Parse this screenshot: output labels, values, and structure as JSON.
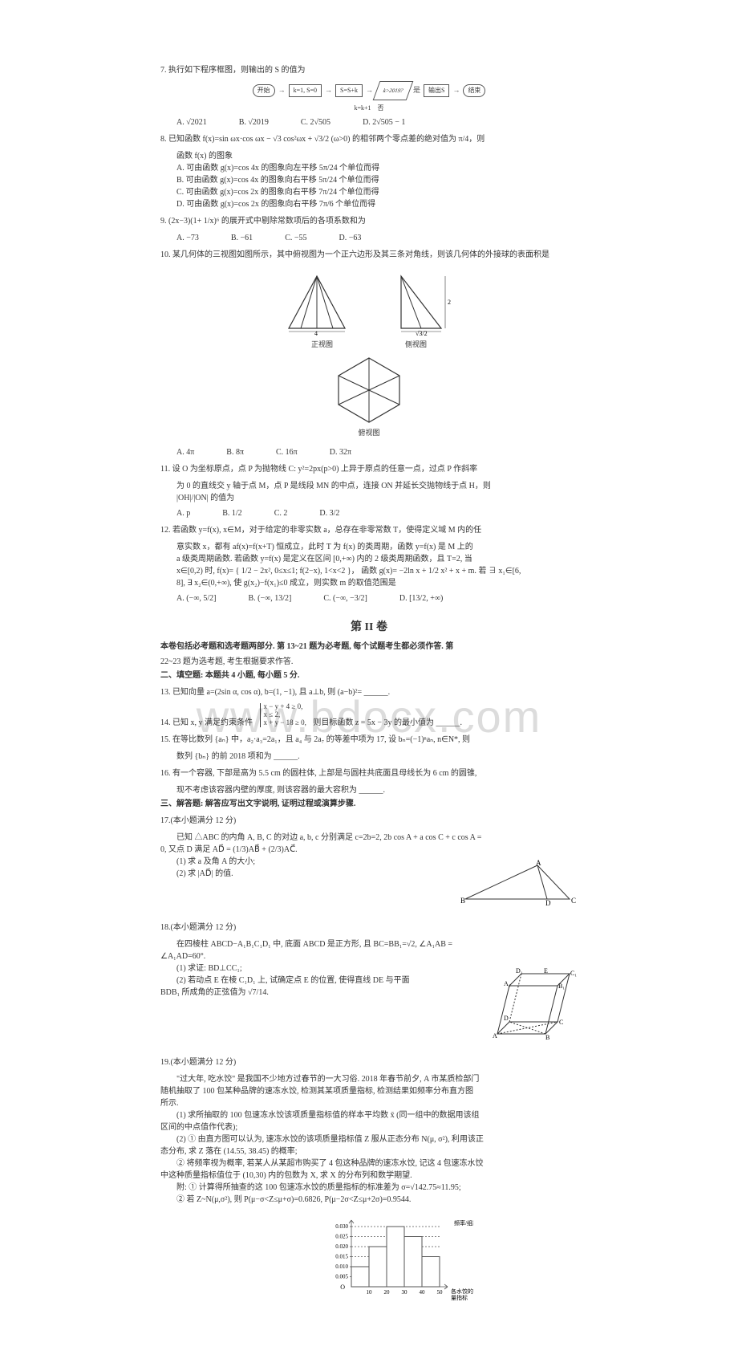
{
  "watermark": "www.bdocx.com",
  "q7": {
    "stem": "7. 执行如下程序框图，则输出的 S 的值为",
    "flow": {
      "start": "开始",
      "init": "k=1\\nS=0",
      "body1": "S=S",
      "body2": "S=S+k",
      "inc": "k=k+1",
      "cond": "k>2019?",
      "out": "输出S",
      "end": "结束",
      "yes": "是",
      "no": "否"
    },
    "A": "A. √2021",
    "B": "B. √2019",
    "C": "C. 2√505",
    "D": "D. 2√505 − 1"
  },
  "q8": {
    "stem1": "8. 已知函数 f(x)=sin ωx·cos ωx − √3 cos²ωx + √3/2 (ω>0) 的相邻两个零点差的绝对值为 π/4，则",
    "stem2": "函数 f(x) 的图象",
    "A": "A. 可由函数 g(x)=cos 4x 的图象向左平移 5π/24 个单位而得",
    "B": "B. 可由函数 g(x)=cos 4x 的图象向右平移 5π/24 个单位而得",
    "C": "C. 可由函数 g(x)=cos 2x 的图象向右平移 7π/24 个单位而得",
    "D": "D. 可由函数 g(x)=cos 2x 的图象向右平移 7π/6 个单位而得"
  },
  "q9": {
    "stem": "9. (2x−3)(1+ 1/x)⁶ 的展开式中剔除常数项后的各项系数和为",
    "A": "A. −73",
    "B": "B. −61",
    "C": "C. −55",
    "D": "D. −63"
  },
  "q10": {
    "stem": "10. 某几何体的三视图如图所示，其中俯视图为一个正六边形及其三条对角线，则该几何体的外接球的表面积是",
    "front": "正视图",
    "side": "侧视图",
    "top": "俯视图",
    "w": "4",
    "h": "2",
    "half": "√3/2",
    "A": "A. 4π",
    "B": "B. 8π",
    "C": "C. 16π",
    "D": "D. 32π"
  },
  "q11": {
    "stem1": "11. 设 O 为坐标原点，点 P 为抛物线 C: y²=2px(p>0) 上异于原点的任意一点，过点 P 作斜率",
    "stem2": "为 0 的直线交 y 轴于点 M，点 P 是线段 MN 的中点，连接 ON 并延长交抛物线于点 H，则",
    "stem3": "|OH|/|ON| 的值为",
    "A": "A. p",
    "B": "B. 1/2",
    "C": "C. 2",
    "D": "D. 3/2"
  },
  "q12": {
    "stem1": "12. 若函数 y=f(x), x∈M，对于给定的非零实数 a，总存在非零常数 T，使得定义域 M 内的任",
    "stem2": "意实数 x，都有 af(x)=f(x+T) 恒成立，此时 T 为 f(x) 的类周期，函数 y=f(x) 是 M 上的",
    "stem3": "a 级类周期函数. 若函数 y=f(x) 是定义在区间 [0,+∞) 内的 2 级类周期函数，且 T=2, 当",
    "stem4": "x∈[0,2) 时, f(x)= { 1/2 − 2x², 0≤x≤1;  f(2−x), 1<x<2 }，  函数 g(x)= −2ln x + 1/2 x² + x + m. 若 ∃ x₁∈[6,",
    "stem5": "8], ∃ x₂∈(0,+∞), 使 g(x₂)−f(x₁)≤0 成立，则实数 m 的取值范围是",
    "A": "A. (−∞, 5/2]",
    "B": "B. (−∞, 13/2]",
    "C": "C. (−∞, −3/2]",
    "D": "D. [13/2, +∞)"
  },
  "sec2": {
    "title": "第 II 卷",
    "intro1": "本卷包括必考题和选考题两部分. 第 13~21 题为必考题, 每个试题考生都必须作答. 第",
    "intro2": "22~23 题为选考题, 考生根据要求作答.",
    "fill": "二、填空题: 本题共 4 小题, 每小题 5 分."
  },
  "q13": "13. 已知向量 a=(2sin α, cos α), b=(1, −1), 且 a⊥b, 则 (a−b)²= ______.",
  "q14": {
    "stem": "14. 已知 x, y 满足约束条件",
    "sys1": "x − y + 4 ≥ 0,",
    "sys2": "x ≤ 2,",
    "sys3": "x + y − 18 ≥ 0,",
    "tail": "则目标函数 z = 5x − 3y 的最小值为 ______."
  },
  "q15": {
    "stem1": "15. 在等比数列 {aₙ} 中，a₂·a₃=2a₁，且 a₄ 与 2a₇ 的等差中项为 17, 设 bₙ=(−1)ⁿaₙ, n∈N*, 则",
    "stem2": "数列 {bₙ} 的前 2018 项和为 ______."
  },
  "q16": {
    "stem1": "16. 有一个容器, 下部是高为 5.5 cm 的圆柱体, 上部是与圆柱共底面且母线长为 6 cm 的圆锥,",
    "stem2": "现不考虑该容器内壁的厚度, 则该容器的最大容积为 ______."
  },
  "solve": "三、解答题: 解答应写出文字说明, 证明过程或演算步骤.",
  "q17": {
    "h": "17.(本小题满分 12 分)",
    "stem1": "已知 △ABC 的内角 A, B, C 的对边 a, b, c 分别满足 c=2b=2, 2b cos A + a cos C + c cos A =",
    "stem2": "0, 又点 D 满足 AD⃗ = (1/3)AB⃗ + (2/3)AC⃗.",
    "p1": "(1) 求 a 及角 A 的大小;",
    "p2": "(2) 求 |AD⃗| 的值.",
    "labels": {
      "A": "A",
      "B": "B",
      "C": "C",
      "D": "D"
    }
  },
  "q18": {
    "h": "18.(本小题满分 12 分)",
    "stem1": "在四棱柱 ABCD−A₁B₁C₁D₁ 中, 底面 ABCD 是正方形, 且 BC=BB₁=√2, ∠A₁AB =",
    "stem2": "∠A₁AD=60°.",
    "p1": "(1) 求证: BD⊥CC₁;",
    "p2": "(2) 若动点 E 在棱 C₁D₁ 上, 试确定点 E 的位置, 使得直线 DE 与平面",
    "p3": "BDB₁ 所成角的正弦值为 √7/14.",
    "labels": {
      "A": "A",
      "B": "B",
      "C": "C",
      "D": "D",
      "A1": "A₁",
      "B1": "B₁",
      "C1": "C₁",
      "D1": "D₁",
      "E": "E"
    }
  },
  "q19": {
    "h": "19.(本小题满分 12 分)",
    "s1": "\"过大年, 吃水饺\" 是我国不少地方过春节的一大习俗. 2018 年春节前夕, A 市某质检部门",
    "s2": "随机抽取了 100 包某种品牌的速冻水饺, 检测其某项质量指标, 检测结果如频率分布直方图",
    "s3": "所示.",
    "p1": "(1) 求所抽取的 100 包速冻水饺该项质量指标值的样本平均数 x̄ (同一组中的数据用该组",
    "p1b": "区间的中点值作代表);",
    "p2": "(2) ① 由直方图可以认为, 速冻水饺的该项质量指标值 Z 服从正态分布 N(μ, σ²), 利用该正",
    "p2b": "态分布, 求 Z 落在 (14.55, 38.45) 的概率;",
    "p3": "② 将频率视为概率, 若某人从某超市购买了 4 包这种品牌的速冻水饺, 记这 4 包速冻水饺",
    "p3b": "中这种质量指标值位于 (10,30) 内的包数为 X, 求 X 的分布列和数学期望.",
    "note1": "附: ① 计算得所抽查的这 100 包速冻水饺的质量指标的标准差为 σ=√142.75≈11.95;",
    "note2": "② 若 Z~N(μ,σ²), 则 P(μ−σ<Z≤μ+σ)=0.6826, P(μ−2σ<Z≤μ+2σ)=0.9544.",
    "hist": {
      "yvals": [
        "0.030",
        "0.025",
        "0.020",
        "0.015",
        "0.010",
        "0.005",
        "O"
      ],
      "xvals": [
        "10",
        "20",
        "30",
        "40",
        "50"
      ],
      "bars": [
        0.01,
        0.02,
        0.03,
        0.025,
        0.015
      ],
      "ylab": "频率/组距",
      "xlab": "各水饺的\n量指标",
      "bar_color": "#ffffff",
      "border_color": "#555555",
      "bg": "#ffffff"
    }
  }
}
